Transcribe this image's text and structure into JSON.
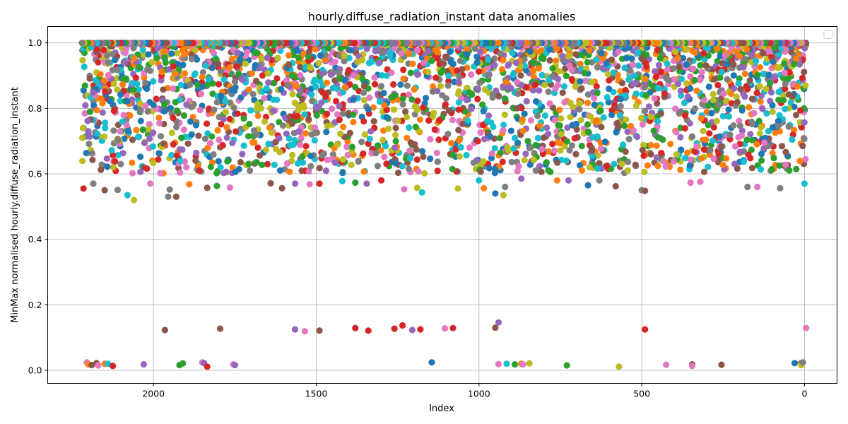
{
  "chart_data": {
    "type": "scatter",
    "title": "hourly.diffuse_radiation_instant data anomalies",
    "xlabel": "Index",
    "ylabel": "MinMax normalised hourly.diffuse_radiation_instant",
    "xlim": [
      2325,
      -100
    ],
    "ylim": [
      -0.04,
      1.05
    ],
    "x_inverted": true,
    "x_ticks": [
      2000,
      1500,
      1000,
      500,
      0
    ],
    "y_ticks": [
      0.0,
      0.2,
      0.4,
      0.6,
      0.8,
      1.0
    ],
    "x_tick_labels": [
      "2000",
      "1500",
      "1000",
      "500",
      "0"
    ],
    "y_tick_labels": [
      "0.0",
      "0.2",
      "0.4",
      "0.6",
      "0.8",
      "1.0"
    ],
    "grid": true,
    "legend": {
      "placement": "top-right",
      "entries": []
    },
    "colors": [
      "#1f77b4",
      "#ff7f0e",
      "#2ca02c",
      "#d62728",
      "#9467bd",
      "#8c564b",
      "#e377c2",
      "#7f7f7f",
      "#bcbd22",
      "#17becf"
    ],
    "dense_region": {
      "x_range": [
        -5,
        2220
      ],
      "y_range": [
        0.6,
        1.0
      ],
      "description_counts": 3000
    },
    "outlier_points": [
      {
        "x": 2205,
        "y": 0.024,
        "c": 6
      },
      {
        "x": 2200,
        "y": 0.018,
        "c": 1
      },
      {
        "x": 2190,
        "y": 0.016,
        "c": 5
      },
      {
        "x": 2175,
        "y": 0.022,
        "c": 5
      },
      {
        "x": 2170,
        "y": 0.015,
        "c": 6
      },
      {
        "x": 2150,
        "y": 0.02,
        "c": 1
      },
      {
        "x": 2140,
        "y": 0.02,
        "c": 9
      },
      {
        "x": 2125,
        "y": 0.013,
        "c": 3
      },
      {
        "x": 2030,
        "y": 0.018,
        "c": 4
      },
      {
        "x": 1965,
        "y": 0.123,
        "c": 5
      },
      {
        "x": 1920,
        "y": 0.016,
        "c": 2
      },
      {
        "x": 1910,
        "y": 0.021,
        "c": 2
      },
      {
        "x": 1850,
        "y": 0.024,
        "c": 6
      },
      {
        "x": 1845,
        "y": 0.022,
        "c": 4
      },
      {
        "x": 1835,
        "y": 0.011,
        "c": 3
      },
      {
        "x": 1795,
        "y": 0.127,
        "c": 5
      },
      {
        "x": 1755,
        "y": 0.018,
        "c": 6
      },
      {
        "x": 1750,
        "y": 0.016,
        "c": 4
      },
      {
        "x": 1565,
        "y": 0.125,
        "c": 4
      },
      {
        "x": 1535,
        "y": 0.119,
        "c": 6
      },
      {
        "x": 1490,
        "y": 0.121,
        "c": 5
      },
      {
        "x": 1380,
        "y": 0.129,
        "c": 3
      },
      {
        "x": 1340,
        "y": 0.121,
        "c": 3
      },
      {
        "x": 1260,
        "y": 0.127,
        "c": 3
      },
      {
        "x": 1235,
        "y": 0.137,
        "c": 3
      },
      {
        "x": 1205,
        "y": 0.123,
        "c": 4
      },
      {
        "x": 1180,
        "y": 0.125,
        "c": 3
      },
      {
        "x": 1145,
        "y": 0.024,
        "c": 0
      },
      {
        "x": 1105,
        "y": 0.128,
        "c": 6
      },
      {
        "x": 1080,
        "y": 0.129,
        "c": 3
      },
      {
        "x": 950,
        "y": 0.13,
        "c": 5
      },
      {
        "x": 940,
        "y": 0.146,
        "c": 4
      },
      {
        "x": 940,
        "y": 0.019,
        "c": 6
      },
      {
        "x": 915,
        "y": 0.02,
        "c": 9
      },
      {
        "x": 890,
        "y": 0.018,
        "c": 2
      },
      {
        "x": 870,
        "y": 0.02,
        "c": 1
      },
      {
        "x": 865,
        "y": 0.018,
        "c": 6
      },
      {
        "x": 845,
        "y": 0.021,
        "c": 8
      },
      {
        "x": 730,
        "y": 0.015,
        "c": 2
      },
      {
        "x": 570,
        "y": 0.011,
        "c": 8
      },
      {
        "x": 490,
        "y": 0.125,
        "c": 3
      },
      {
        "x": 425,
        "y": 0.017,
        "c": 6
      },
      {
        "x": 345,
        "y": 0.018,
        "c": 5
      },
      {
        "x": 345,
        "y": 0.013,
        "c": 6
      },
      {
        "x": 255,
        "y": 0.017,
        "c": 5
      },
      {
        "x": 30,
        "y": 0.022,
        "c": 0
      },
      {
        "x": 10,
        "y": 0.022,
        "c": 5
      },
      {
        "x": 10,
        "y": 0.016,
        "c": 8
      },
      {
        "x": 5,
        "y": 0.024,
        "c": 7
      },
      {
        "x": -5,
        "y": 0.129,
        "c": 6
      }
    ],
    "lower_tail_points": [
      {
        "x": 2215,
        "y": 0.555,
        "c": 3
      },
      {
        "x": 2185,
        "y": 0.57,
        "c": 7
      },
      {
        "x": 2150,
        "y": 0.55,
        "c": 5
      },
      {
        "x": 2110,
        "y": 0.551,
        "c": 7
      },
      {
        "x": 2080,
        "y": 0.535,
        "c": 9
      },
      {
        "x": 2060,
        "y": 0.52,
        "c": 8
      },
      {
        "x": 2040,
        "y": 0.606,
        "c": 4
      },
      {
        "x": 2010,
        "y": 0.57,
        "c": 6
      },
      {
        "x": 1955,
        "y": 0.53,
        "c": 7
      },
      {
        "x": 1950,
        "y": 0.552,
        "c": 7
      },
      {
        "x": 1930,
        "y": 0.53,
        "c": 5
      },
      {
        "x": 1890,
        "y": 0.568,
        "c": 1
      },
      {
        "x": 1835,
        "y": 0.557,
        "c": 5
      },
      {
        "x": 1805,
        "y": 0.563,
        "c": 2
      },
      {
        "x": 1765,
        "y": 0.558,
        "c": 6
      },
      {
        "x": 1640,
        "y": 0.571,
        "c": 5
      },
      {
        "x": 1605,
        "y": 0.556,
        "c": 5
      },
      {
        "x": 1565,
        "y": 0.57,
        "c": 4
      },
      {
        "x": 1520,
        "y": 0.568,
        "c": 6
      },
      {
        "x": 1490,
        "y": 0.57,
        "c": 3
      },
      {
        "x": 1420,
        "y": 0.578,
        "c": 9
      },
      {
        "x": 1380,
        "y": 0.573,
        "c": 2
      },
      {
        "x": 1345,
        "y": 0.57,
        "c": 4
      },
      {
        "x": 1300,
        "y": 0.58,
        "c": 3
      },
      {
        "x": 1230,
        "y": 0.553,
        "c": 6
      },
      {
        "x": 1190,
        "y": 0.557,
        "c": 8
      },
      {
        "x": 1175,
        "y": 0.543,
        "c": 9
      },
      {
        "x": 1065,
        "y": 0.555,
        "c": 8
      },
      {
        "x": 1000,
        "y": 0.58,
        "c": 9
      },
      {
        "x": 985,
        "y": 0.556,
        "c": 1
      },
      {
        "x": 950,
        "y": 0.54,
        "c": 0
      },
      {
        "x": 925,
        "y": 0.535,
        "c": 8
      },
      {
        "x": 920,
        "y": 0.56,
        "c": 7
      },
      {
        "x": 870,
        "y": 0.585,
        "c": 4
      },
      {
        "x": 760,
        "y": 0.58,
        "c": 1
      },
      {
        "x": 725,
        "y": 0.58,
        "c": 4
      },
      {
        "x": 665,
        "y": 0.565,
        "c": 0
      },
      {
        "x": 630,
        "y": 0.58,
        "c": 7
      },
      {
        "x": 580,
        "y": 0.562,
        "c": 5
      },
      {
        "x": 500,
        "y": 0.55,
        "c": 7
      },
      {
        "x": 490,
        "y": 0.548,
        "c": 5
      },
      {
        "x": 350,
        "y": 0.573,
        "c": 6
      },
      {
        "x": 320,
        "y": 0.576,
        "c": 6
      },
      {
        "x": 175,
        "y": 0.56,
        "c": 7
      },
      {
        "x": 145,
        "y": 0.56,
        "c": 6
      },
      {
        "x": 75,
        "y": 0.556,
        "c": 7
      },
      {
        "x": 0,
        "y": 0.57,
        "c": 9
      }
    ]
  }
}
